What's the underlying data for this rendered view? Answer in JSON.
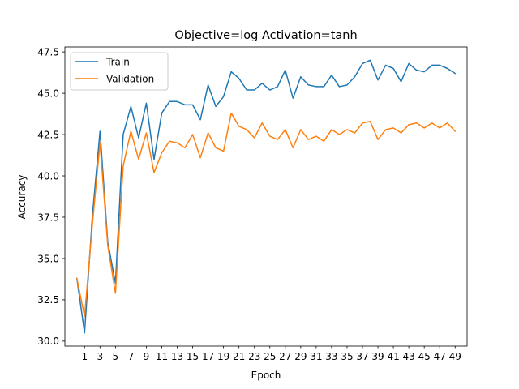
{
  "chart_data": {
    "type": "line",
    "title": "Objective=log Activation=tanh",
    "xlabel": "Epoch",
    "ylabel": "Accuracy",
    "xlim": [
      -1.55,
      50.55
    ],
    "ylim": [
      29.7,
      47.8
    ],
    "x_ticks": [
      1,
      3,
      5,
      7,
      9,
      11,
      13,
      15,
      17,
      19,
      21,
      23,
      25,
      27,
      29,
      31,
      33,
      35,
      37,
      39,
      41,
      43,
      45,
      47,
      49
    ],
    "y_ticks": [
      30.0,
      32.5,
      35.0,
      37.5,
      40.0,
      42.5,
      45.0,
      47.5
    ],
    "y_tick_labels": [
      "30.0",
      "32.5",
      "35.0",
      "37.5",
      "40.0",
      "42.5",
      "45.0",
      "47.5"
    ],
    "legend_position": "upper-left",
    "x": [
      0,
      1,
      2,
      3,
      4,
      5,
      6,
      7,
      8,
      9,
      10,
      11,
      12,
      13,
      14,
      15,
      16,
      17,
      18,
      19,
      20,
      21,
      22,
      23,
      24,
      25,
      26,
      27,
      28,
      29,
      30,
      31,
      32,
      33,
      34,
      35,
      36,
      37,
      38,
      39,
      40,
      41,
      42,
      43,
      44,
      45,
      46,
      47,
      48,
      49
    ],
    "series": [
      {
        "name": "Train",
        "color": "#1f77b4",
        "values": [
          33.8,
          30.5,
          37.5,
          42.7,
          36.0,
          33.5,
          42.5,
          44.2,
          42.3,
          44.4,
          41.0,
          43.8,
          44.5,
          44.5,
          44.3,
          44.3,
          43.4,
          45.5,
          44.2,
          44.8,
          46.3,
          45.9,
          45.2,
          45.2,
          45.6,
          45.2,
          45.4,
          46.4,
          44.7,
          46.0,
          45.5,
          45.4,
          45.4,
          46.1,
          45.4,
          45.5,
          46.0,
          46.8,
          47.0,
          45.8,
          46.7,
          46.5,
          45.7,
          46.8,
          46.4,
          46.3,
          46.7,
          46.7,
          46.5,
          46.2
        ]
      },
      {
        "name": "Validation",
        "color": "#ff7f0e",
        "values": [
          33.8,
          31.5,
          37.0,
          42.0,
          35.8,
          32.9,
          40.6,
          42.7,
          41.0,
          42.6,
          40.2,
          41.4,
          42.1,
          42.0,
          41.7,
          42.5,
          41.1,
          42.6,
          41.7,
          41.5,
          43.8,
          43.0,
          42.8,
          42.3,
          43.2,
          42.4,
          42.2,
          42.8,
          41.7,
          42.8,
          42.2,
          42.4,
          42.1,
          42.8,
          42.5,
          42.8,
          42.6,
          43.2,
          43.3,
          42.2,
          42.8,
          42.9,
          42.6,
          43.1,
          43.2,
          42.9,
          43.2,
          42.9,
          43.2,
          42.7
        ]
      }
    ]
  }
}
